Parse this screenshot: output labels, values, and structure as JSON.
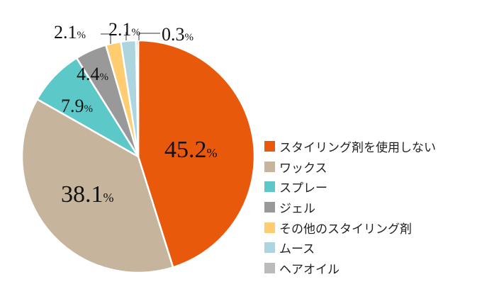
{
  "chart_data": {
    "type": "pie",
    "start": "top",
    "direction": "clockwise",
    "unit": "%",
    "slices": [
      {
        "name": "スタイリング剤を使用しない",
        "value": 45.2,
        "label": "45.2",
        "color": "#E8590C"
      },
      {
        "name": "ワックス",
        "value": 38.1,
        "label": "38.1",
        "color": "#C6B49C"
      },
      {
        "name": "スプレー",
        "value": 7.9,
        "label": "7.9",
        "color": "#5CC8C8"
      },
      {
        "name": "ジェル",
        "value": 4.4,
        "label": "4.4",
        "color": "#999999"
      },
      {
        "name": "その他のスタイリング剤",
        "value": 2.1,
        "label": "2.1",
        "color": "#FFCC70"
      },
      {
        "name": "ムース",
        "value": 2.1,
        "label": "2.1",
        "color": "#ADD5DF"
      },
      {
        "name": "ヘアオイル",
        "value": 0.3,
        "label": "0.3",
        "color": "#BBBBBB"
      }
    ],
    "legend_position": "right"
  }
}
